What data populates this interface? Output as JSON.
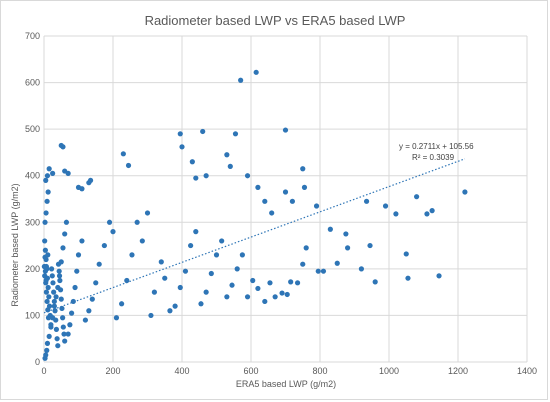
{
  "chart_data": {
    "type": "scatter",
    "title": "Radiometer based LWP vs ERA5 based LWP",
    "xlabel": "ERA5 based LWP (g/m2)",
    "ylabel": "Radiometer based LWP (g/m2)",
    "xlim": [
      0,
      1400
    ],
    "ylim": [
      0,
      700
    ],
    "xticks": [
      0,
      200,
      400,
      600,
      800,
      1000,
      1200,
      1400
    ],
    "yticks": [
      0,
      100,
      200,
      300,
      400,
      500,
      600,
      700
    ],
    "grid": true,
    "legend": "none",
    "colors": {
      "marker": "#2e75b6",
      "trendline": "#2e75b6",
      "grid": "#d9d9d9"
    },
    "trendline": {
      "slope": 0.2711,
      "intercept": 105.56,
      "style": "dotted",
      "x_range": [
        0,
        1220
      ]
    },
    "annotations": [
      "y = 0.2711x + 105.56",
      "R² = 0.3039"
    ],
    "series": [
      {
        "points": [
          [
            570,
            605
          ],
          [
            615,
            622
          ],
          [
            395,
            490
          ],
          [
            460,
            495
          ],
          [
            555,
            490
          ],
          [
            700,
            498
          ],
          [
            50,
            465
          ],
          [
            55,
            462
          ],
          [
            5,
            390
          ],
          [
            15,
            415
          ],
          [
            10,
            400
          ],
          [
            25,
            405
          ],
          [
            60,
            410
          ],
          [
            70,
            405
          ],
          [
            130,
            385
          ],
          [
            135,
            390
          ],
          [
            100,
            375
          ],
          [
            110,
            372
          ],
          [
            230,
            447
          ],
          [
            245,
            422
          ],
          [
            400,
            462
          ],
          [
            430,
            430
          ],
          [
            440,
            395
          ],
          [
            470,
            400
          ],
          [
            530,
            445
          ],
          [
            540,
            420
          ],
          [
            590,
            400
          ],
          [
            620,
            375
          ],
          [
            640,
            345
          ],
          [
            660,
            320
          ],
          [
            700,
            365
          ],
          [
            720,
            345
          ],
          [
            750,
            415
          ],
          [
            755,
            375
          ],
          [
            790,
            335
          ],
          [
            830,
            285
          ],
          [
            875,
            275
          ],
          [
            935,
            345
          ],
          [
            945,
            250
          ],
          [
            960,
            172
          ],
          [
            990,
            335
          ],
          [
            1020,
            318
          ],
          [
            1050,
            232
          ],
          [
            1055,
            180
          ],
          [
            1080,
            355
          ],
          [
            1110,
            318
          ],
          [
            1125,
            325
          ],
          [
            1145,
            185
          ],
          [
            1220,
            365
          ],
          [
            920,
            200
          ],
          [
            880,
            245
          ],
          [
            850,
            212
          ],
          [
            810,
            195
          ],
          [
            795,
            195
          ],
          [
            760,
            245
          ],
          [
            750,
            210
          ],
          [
            735,
            170
          ],
          [
            715,
            172
          ],
          [
            705,
            145
          ],
          [
            690,
            148
          ],
          [
            670,
            140
          ],
          [
            655,
            170
          ],
          [
            640,
            130
          ],
          [
            620,
            158
          ],
          [
            605,
            175
          ],
          [
            590,
            140
          ],
          [
            575,
            230
          ],
          [
            560,
            200
          ],
          [
            545,
            165
          ],
          [
            530,
            140
          ],
          [
            515,
            260
          ],
          [
            500,
            230
          ],
          [
            485,
            190
          ],
          [
            470,
            150
          ],
          [
            455,
            125
          ],
          [
            440,
            280
          ],
          [
            425,
            250
          ],
          [
            410,
            195
          ],
          [
            395,
            160
          ],
          [
            380,
            120
          ],
          [
            365,
            110
          ],
          [
            350,
            180
          ],
          [
            340,
            215
          ],
          [
            320,
            150
          ],
          [
            310,
            100
          ],
          [
            300,
            320
          ],
          [
            285,
            260
          ],
          [
            270,
            300
          ],
          [
            255,
            230
          ],
          [
            240,
            175
          ],
          [
            225,
            125
          ],
          [
            210,
            95
          ],
          [
            200,
            280
          ],
          [
            190,
            300
          ],
          [
            175,
            250
          ],
          [
            160,
            210
          ],
          [
            150,
            170
          ],
          [
            140,
            135
          ],
          [
            130,
            110
          ],
          [
            120,
            90
          ],
          [
            110,
            260
          ],
          [
            100,
            230
          ],
          [
            95,
            195
          ],
          [
            90,
            160
          ],
          [
            85,
            130
          ],
          [
            80,
            105
          ],
          [
            75,
            80
          ],
          [
            70,
            60
          ],
          [
            65,
            300
          ],
          [
            60,
            275
          ],
          [
            55,
            245
          ],
          [
            50,
            215
          ],
          [
            45,
            185
          ],
          [
            40,
            160
          ],
          [
            35,
            140
          ],
          [
            30,
            120
          ],
          [
            25,
            95
          ],
          [
            20,
            75
          ],
          [
            15,
            55
          ],
          [
            10,
            40
          ],
          [
            8,
            25
          ],
          [
            5,
            15
          ],
          [
            3,
            8
          ],
          [
            2,
            260
          ],
          [
            4,
            240
          ],
          [
            6,
            220
          ],
          [
            8,
            200
          ],
          [
            10,
            180
          ],
          [
            12,
            160
          ],
          [
            14,
            140
          ],
          [
            16,
            120
          ],
          [
            18,
            100
          ],
          [
            20,
            80
          ],
          [
            22,
            200
          ],
          [
            24,
            185
          ],
          [
            26,
            170
          ],
          [
            28,
            150
          ],
          [
            30,
            130
          ],
          [
            32,
            110
          ],
          [
            34,
            90
          ],
          [
            36,
            70
          ],
          [
            38,
            50
          ],
          [
            40,
            35
          ],
          [
            42,
            210
          ],
          [
            44,
            195
          ],
          [
            46,
            175
          ],
          [
            48,
            155
          ],
          [
            50,
            135
          ],
          [
            52,
            115
          ],
          [
            54,
            95
          ],
          [
            56,
            75
          ],
          [
            58,
            60
          ],
          [
            60,
            45
          ],
          [
            3,
            300
          ],
          [
            6,
            320
          ],
          [
            9,
            345
          ],
          [
            12,
            365
          ],
          [
            2,
            185
          ],
          [
            5,
            170
          ],
          [
            7,
            150
          ],
          [
            9,
            130
          ],
          [
            11,
            112
          ],
          [
            13,
            95
          ],
          [
            1,
            205
          ],
          [
            3,
            225
          ],
          [
            4,
            195
          ],
          [
            6,
            175
          ],
          [
            7,
            205
          ],
          [
            11,
            230
          ]
        ]
      }
    ]
  }
}
